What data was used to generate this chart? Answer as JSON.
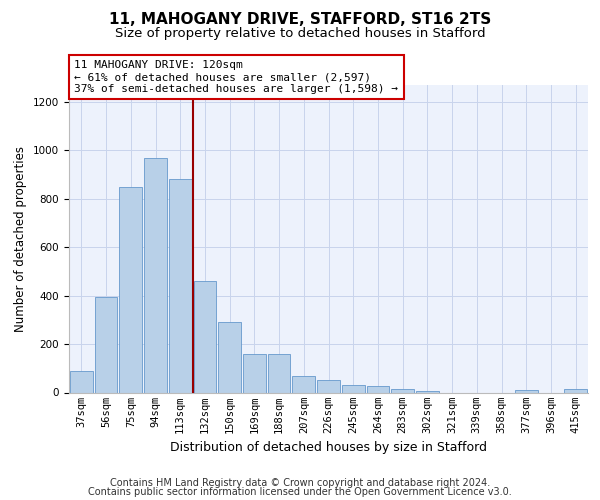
{
  "title_line1": "11, MAHOGANY DRIVE, STAFFORD, ST16 2TS",
  "title_line2": "Size of property relative to detached houses in Stafford",
  "xlabel": "Distribution of detached houses by size in Stafford",
  "ylabel": "Number of detached properties",
  "categories": [
    "37sqm",
    "56sqm",
    "75sqm",
    "94sqm",
    "113sqm",
    "132sqm",
    "150sqm",
    "169sqm",
    "188sqm",
    "207sqm",
    "226sqm",
    "245sqm",
    "264sqm",
    "283sqm",
    "302sqm",
    "321sqm",
    "339sqm",
    "358sqm",
    "377sqm",
    "396sqm",
    "415sqm"
  ],
  "values": [
    90,
    395,
    850,
    970,
    880,
    460,
    293,
    160,
    160,
    68,
    50,
    30,
    27,
    15,
    5,
    0,
    0,
    0,
    10,
    0,
    13
  ],
  "bar_color": "#b8d0e8",
  "bar_edge_color": "#6699cc",
  "vline_index": 4,
  "vline_color": "#990000",
  "annotation_text": "11 MAHOGANY DRIVE: 120sqm\n← 61% of detached houses are smaller (2,597)\n37% of semi-detached houses are larger (1,598) →",
  "annotation_box_color": "#ffffff",
  "annotation_box_edge_color": "#cc0000",
  "ylim": [
    0,
    1270
  ],
  "yticks": [
    0,
    200,
    400,
    600,
    800,
    1000,
    1200
  ],
  "background_color": "#edf2fc",
  "footer_line1": "Contains HM Land Registry data © Crown copyright and database right 2024.",
  "footer_line2": "Contains public sector information licensed under the Open Government Licence v3.0.",
  "grid_color": "#c8d4ec",
  "title_fontsize": 11,
  "subtitle_fontsize": 9.5,
  "ylabel_fontsize": 8.5,
  "xlabel_fontsize": 9,
  "tick_fontsize": 7.5,
  "footer_fontsize": 7,
  "annot_fontsize": 8
}
